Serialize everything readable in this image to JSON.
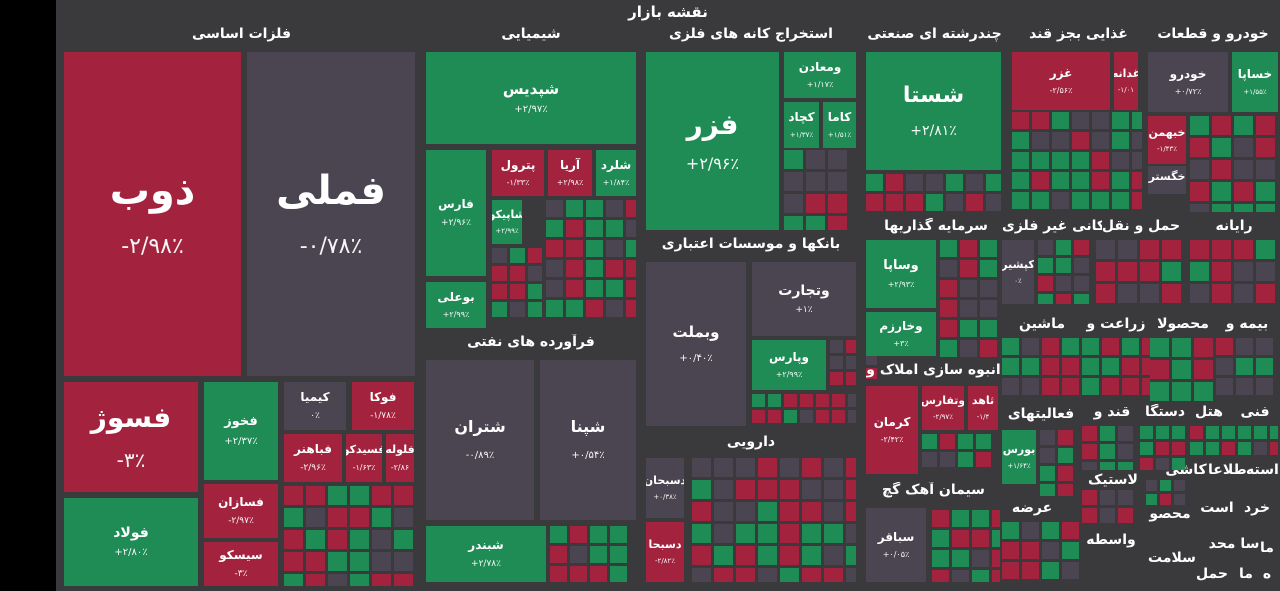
{
  "title": "نقشه بازار",
  "colors": {
    "up": "#1f8c56",
    "down": "#a3233f",
    "neutral": "#4a4550",
    "background": "#3a3a3c"
  },
  "sectors": [
    {
      "id": "s1",
      "label": "فلزات اساسی"
    },
    {
      "id": "s2",
      "label": "شیمیایی"
    },
    {
      "id": "s3",
      "label": "استخراج کانه های فلزی"
    },
    {
      "id": "s4",
      "label": "چندرشته ای صنعتی"
    },
    {
      "id": "s5",
      "label": "غذایی بجز قند"
    },
    {
      "id": "s6",
      "label": "خودرو و قطعات"
    },
    {
      "id": "s7",
      "label": "بانکها و موسسات اعتباری"
    },
    {
      "id": "s8",
      "label": "فرآورده های نفتی"
    },
    {
      "id": "s9",
      "label": "سرمایه گذاریها"
    },
    {
      "id": "s10",
      "label": "کانی غیر فلزی"
    },
    {
      "id": "s11",
      "label": "حمل و نقل"
    },
    {
      "id": "s12",
      "label": "رایانه"
    },
    {
      "id": "s13",
      "label": "ماشین"
    },
    {
      "id": "s14",
      "label": "زراعت و"
    },
    {
      "id": "s15",
      "label": "محصولا"
    },
    {
      "id": "s16",
      "label": "بیمه و"
    },
    {
      "id": "s17",
      "label": "انبوه سازی املاک و"
    },
    {
      "id": "s18",
      "label": "دارویی"
    },
    {
      "id": "s19",
      "label": "سیمان آهک گچ"
    },
    {
      "id": "s20",
      "label": "فعالیتهای"
    },
    {
      "id": "s21",
      "label": "قند و"
    },
    {
      "id": "s22",
      "label": "دستگا"
    },
    {
      "id": "s23",
      "label": "هتل"
    },
    {
      "id": "s24",
      "label": "فنی"
    },
    {
      "id": "s25",
      "label": "لاستیک"
    },
    {
      "id": "s26",
      "label": "کاشی"
    },
    {
      "id": "s27",
      "label": "اطلاعا"
    },
    {
      "id": "s28",
      "label": "استه"
    },
    {
      "id": "s29",
      "label": "عرضه"
    },
    {
      "id": "s30",
      "label": "خرد"
    },
    {
      "id": "s31",
      "label": "است"
    },
    {
      "id": "s32",
      "label": "محصو"
    },
    {
      "id": "s33",
      "label": "واسطه"
    },
    {
      "id": "s34",
      "label": "سا محد"
    },
    {
      "id": "s35",
      "label": "سلامت"
    },
    {
      "id": "s36",
      "label": "حمل"
    },
    {
      "id": "s37",
      "label": "ما"
    },
    {
      "id": "s38",
      "label": "ما"
    },
    {
      "id": "s39",
      "label": "ه"
    }
  ],
  "tiles": [
    {
      "id": "t1",
      "symbol": "ذوب",
      "change": "-۲/۹۸٪",
      "trend": "down"
    },
    {
      "id": "t2",
      "symbol": "فملی",
      "change": "-۰/۷۸٪",
      "trend": "neutral"
    },
    {
      "id": "t3",
      "symbol": "فسوژ",
      "change": "-۳٪",
      "trend": "down"
    },
    {
      "id": "t4",
      "symbol": "فخوز",
      "change": "+۲/۳۷٪",
      "trend": "up"
    },
    {
      "id": "t5",
      "symbol": "کیمیا",
      "change": "۰٪",
      "trend": "neutral"
    },
    {
      "id": "t6",
      "symbol": "فوکا",
      "change": "-۱/۷۸٪",
      "trend": "down"
    },
    {
      "id": "t7",
      "symbol": "فباهنر",
      "change": "-۲/۹۶٪",
      "trend": "down"
    },
    {
      "id": "t8",
      "symbol": "فسیدکو",
      "change": "-۱/۶۳٪",
      "trend": "down"
    },
    {
      "id": "t9",
      "symbol": "فلوله",
      "change": "-۲/۸۶",
      "trend": "down"
    },
    {
      "id": "t10",
      "symbol": "فسازان",
      "change": "-۲/۹۷٪",
      "trend": "down"
    },
    {
      "id": "t11",
      "symbol": "فولاد",
      "change": "+۲/۸۰٪",
      "trend": "up"
    },
    {
      "id": "t12",
      "symbol": "سیسکو",
      "change": "-۳٪",
      "trend": "down"
    },
    {
      "id": "t13",
      "symbol": "شپدیس",
      "change": "+۲/۹۷٪",
      "trend": "up"
    },
    {
      "id": "t14",
      "symbol": "فارس",
      "change": "+۲/۹۶٪",
      "trend": "up"
    },
    {
      "id": "t15",
      "symbol": "پترول",
      "change": "-۱/۳۳٪",
      "trend": "down"
    },
    {
      "id": "t16",
      "symbol": "آریا",
      "change": "+۲/۹۸٪",
      "trend": "up"
    },
    {
      "id": "t17",
      "symbol": "شلرد",
      "change": "+۱/۸۴٪",
      "trend": "up"
    },
    {
      "id": "t18",
      "symbol": "شاپیکو",
      "change": "+۲/۹۹٪",
      "trend": "up"
    },
    {
      "id": "t19",
      "symbol": "بوعلی",
      "change": "+۲/۹۹٪",
      "trend": "up"
    },
    {
      "id": "t20",
      "symbol": "فزر",
      "change": "+۲/۹۶٪",
      "trend": "up"
    },
    {
      "id": "t21",
      "symbol": "ومعادن",
      "change": "+۱/۱۷٪",
      "trend": "up"
    },
    {
      "id": "t22",
      "symbol": "کاما",
      "change": "+۱/۵۱٪",
      "trend": "up"
    },
    {
      "id": "t23",
      "symbol": "کچاد",
      "change": "+۱/۳۷٪",
      "trend": "up"
    },
    {
      "id": "t24",
      "symbol": "شستا",
      "change": "+۲/۸۱٪",
      "trend": "up"
    },
    {
      "id": "t25",
      "symbol": "غزر",
      "change": "-۲/۵۶٪",
      "trend": "down"
    },
    {
      "id": "t26",
      "symbol": "غدانه",
      "change": "-۱/۰۱",
      "trend": "down"
    },
    {
      "id": "t27",
      "symbol": "خودرو",
      "change": "+۰/۷۲٪",
      "trend": "neutral"
    },
    {
      "id": "t28",
      "symbol": "خساپا",
      "change": "+۱/۵۵٪",
      "trend": "up"
    },
    {
      "id": "t29",
      "symbol": "خبهمن",
      "change": "-۱/۴۳٪",
      "trend": "down"
    },
    {
      "id": "t30",
      "symbol": "خگستر",
      "change": "",
      "trend": "neutral"
    },
    {
      "id": "t31",
      "symbol": "وتجارت",
      "change": "+۱٪",
      "trend": "neutral"
    },
    {
      "id": "t32",
      "symbol": "وبملت",
      "change": "+۰/۴۰٪",
      "trend": "neutral"
    },
    {
      "id": "t33",
      "symbol": "وپارس",
      "change": "+۲/۹۹٪",
      "trend": "up"
    },
    {
      "id": "t34",
      "symbol": "شتران",
      "change": "-۰/۸۹٪",
      "trend": "neutral"
    },
    {
      "id": "t35",
      "symbol": "شپنا",
      "change": "+۰/۵۴٪",
      "trend": "neutral"
    },
    {
      "id": "t36",
      "symbol": "شبندر",
      "change": "+۲/۷۸٪",
      "trend": "up"
    },
    {
      "id": "t37",
      "symbol": "وساپا",
      "change": "+۲/۹۳٪",
      "trend": "up"
    },
    {
      "id": "t38",
      "symbol": "وخارزم",
      "change": "+۳٪",
      "trend": "up"
    },
    {
      "id": "t39",
      "symbol": "کپشیر",
      "change": "۰٪",
      "trend": "neutral"
    },
    {
      "id": "t40",
      "symbol": "کرمان",
      "change": "-۲/۴۲٪",
      "trend": "down"
    },
    {
      "id": "t41",
      "symbol": "وتفارس",
      "change": "-۲/۹۷٪",
      "trend": "down"
    },
    {
      "id": "t42",
      "symbol": "ثاهد",
      "change": "-۱/۴",
      "trend": "down"
    },
    {
      "id": "t43",
      "symbol": "بورس",
      "change": "+۱/۶۴٪",
      "trend": "up"
    },
    {
      "id": "t44",
      "symbol": "سباقر",
      "change": "+۰/۰۵٪",
      "trend": "neutral"
    },
    {
      "id": "t45",
      "symbol": "دسبحان",
      "change": "+۰/۳۸٪",
      "trend": "neutral"
    },
    {
      "id": "t46",
      "symbol": "دسبحا",
      "change": "-۲/۸۲٪",
      "trend": "down"
    }
  ]
}
